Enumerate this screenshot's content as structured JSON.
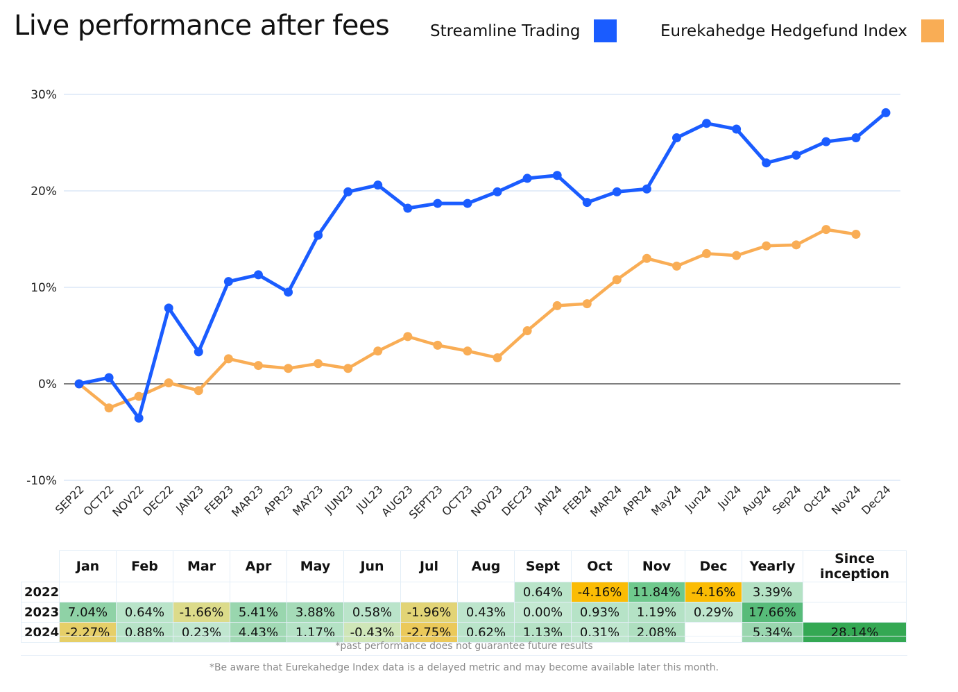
{
  "title": "Live performance after fees",
  "legend": [
    {
      "label": "Streamline Trading",
      "color": "#1a5cff"
    },
    {
      "label": "Eurekahedge Hedgefund Index",
      "color": "#f9ad55"
    }
  ],
  "chart_data": {
    "type": "line",
    "x": [
      "SEP22",
      "OCT22",
      "NOV22",
      "DEC22",
      "JAN23",
      "FEB23",
      "MAR23",
      "APR23",
      "MAY23",
      "JUN23",
      "JUL23",
      "AUG23",
      "SEPT23",
      "OCT23",
      "NOV23",
      "DEC23",
      "JAN24",
      "FEB24",
      "MAR24",
      "APR24",
      "May24",
      "Jun24",
      "Jul24",
      "Aug24",
      "Sep24",
      "Oct24",
      "Nov24",
      "Dec24"
    ],
    "ylim": [
      -10,
      30
    ],
    "yticks": [
      "30%",
      "20%",
      "10%",
      "0%",
      "-10%"
    ],
    "ytick_values": [
      30,
      20,
      10,
      0,
      -10
    ],
    "grid": true,
    "series": [
      {
        "name": "Streamline Trading",
        "color": "#1a5cff",
        "values": [
          0.0,
          0.64,
          -3.55,
          7.85,
          3.32,
          10.6,
          11.3,
          9.5,
          15.4,
          19.9,
          20.6,
          18.2,
          18.7,
          18.7,
          19.9,
          21.3,
          21.6,
          18.8,
          19.9,
          20.2,
          25.5,
          27.0,
          26.4,
          22.9,
          23.7,
          25.1,
          25.5,
          28.1
        ]
      },
      {
        "name": "Eurekahedge Hedgefund Index",
        "color": "#f9ad55",
        "values": [
          0.0,
          -2.5,
          -1.3,
          0.1,
          -0.7,
          2.6,
          1.9,
          1.6,
          2.1,
          1.6,
          3.4,
          4.9,
          4.0,
          3.4,
          2.7,
          5.5,
          8.1,
          8.3,
          10.8,
          13.0,
          12.2,
          13.5,
          13.3,
          14.3,
          14.4,
          16.0,
          15.5,
          null
        ]
      }
    ]
  },
  "table": {
    "headers": [
      "",
      "Jan",
      "Feb",
      "Mar",
      "Apr",
      "May",
      "Jun",
      "Jul",
      "Aug",
      "Sept",
      "Oct",
      "Nov",
      "Dec",
      "Yearly",
      "Since inception"
    ],
    "rows": [
      {
        "year": "2022",
        "cells": [
          {
            "v": "",
            "c": ""
          },
          {
            "v": "",
            "c": ""
          },
          {
            "v": "",
            "c": ""
          },
          {
            "v": "",
            "c": ""
          },
          {
            "v": "",
            "c": ""
          },
          {
            "v": "",
            "c": ""
          },
          {
            "v": "",
            "c": ""
          },
          {
            "v": "",
            "c": ""
          },
          {
            "v": "0.64%",
            "c": "#b9e4c9"
          },
          {
            "v": "-4.16%",
            "c": "#fbbc04"
          },
          {
            "v": "11.84%",
            "c": "#6fc98d"
          },
          {
            "v": "-4.16%",
            "c": "#fbbc04"
          },
          {
            "v": "3.39%",
            "c": "#b4e2c4"
          },
          {
            "v": "",
            "c": ""
          }
        ]
      },
      {
        "year": "2023",
        "cells": [
          {
            "v": "7.04%",
            "c": "#8fd2a6"
          },
          {
            "v": "0.64%",
            "c": "#b9e4c9"
          },
          {
            "v": "-1.66%",
            "c": "#dcdb8a"
          },
          {
            "v": "5.41%",
            "c": "#99d6ae"
          },
          {
            "v": "3.88%",
            "c": "#a5dbb8"
          },
          {
            "v": "0.58%",
            "c": "#bae4ca"
          },
          {
            "v": "-1.96%",
            "c": "#e2d476"
          },
          {
            "v": "0.43%",
            "c": "#bde5cc"
          },
          {
            "v": "0.00%",
            "c": "#c3e8d1"
          },
          {
            "v": "0.93%",
            "c": "#b6e3c7"
          },
          {
            "v": "1.19%",
            "c": "#b4e2c5"
          },
          {
            "v": "0.29%",
            "c": "#bfe6ce"
          },
          {
            "v": "17.66%",
            "c": "#57bb79"
          },
          {
            "v": "",
            "c": ""
          }
        ]
      },
      {
        "year": "2024",
        "cells": [
          {
            "v": "-2.27%",
            "c": "#e6cf68"
          },
          {
            "v": "0.88%",
            "c": "#b7e3c7"
          },
          {
            "v": "0.23%",
            "c": "#c0e6cf"
          },
          {
            "v": "4.43%",
            "c": "#a1d9b4"
          },
          {
            "v": "1.17%",
            "c": "#b4e2c5"
          },
          {
            "v": "-0.43%",
            "c": "#cfe6b8"
          },
          {
            "v": "-2.75%",
            "c": "#ebc95a"
          },
          {
            "v": "0.62%",
            "c": "#b9e4c9"
          },
          {
            "v": "1.13%",
            "c": "#b5e2c5"
          },
          {
            "v": "0.31%",
            "c": "#bfe6ce"
          },
          {
            "v": "2.08%",
            "c": "#aedfbf"
          },
          {
            "v": "",
            "c": ""
          },
          {
            "v": "5.34%",
            "c": "#9ad6af"
          },
          {
            "v": "28.14%",
            "c": "#34a853"
          }
        ]
      }
    ]
  },
  "notes": {
    "past_performance": "*past performance does not guarantee future results",
    "delayed_metric": "*Be aware that Eurekahedge Index data is a delayed metric and may become available later this month."
  }
}
